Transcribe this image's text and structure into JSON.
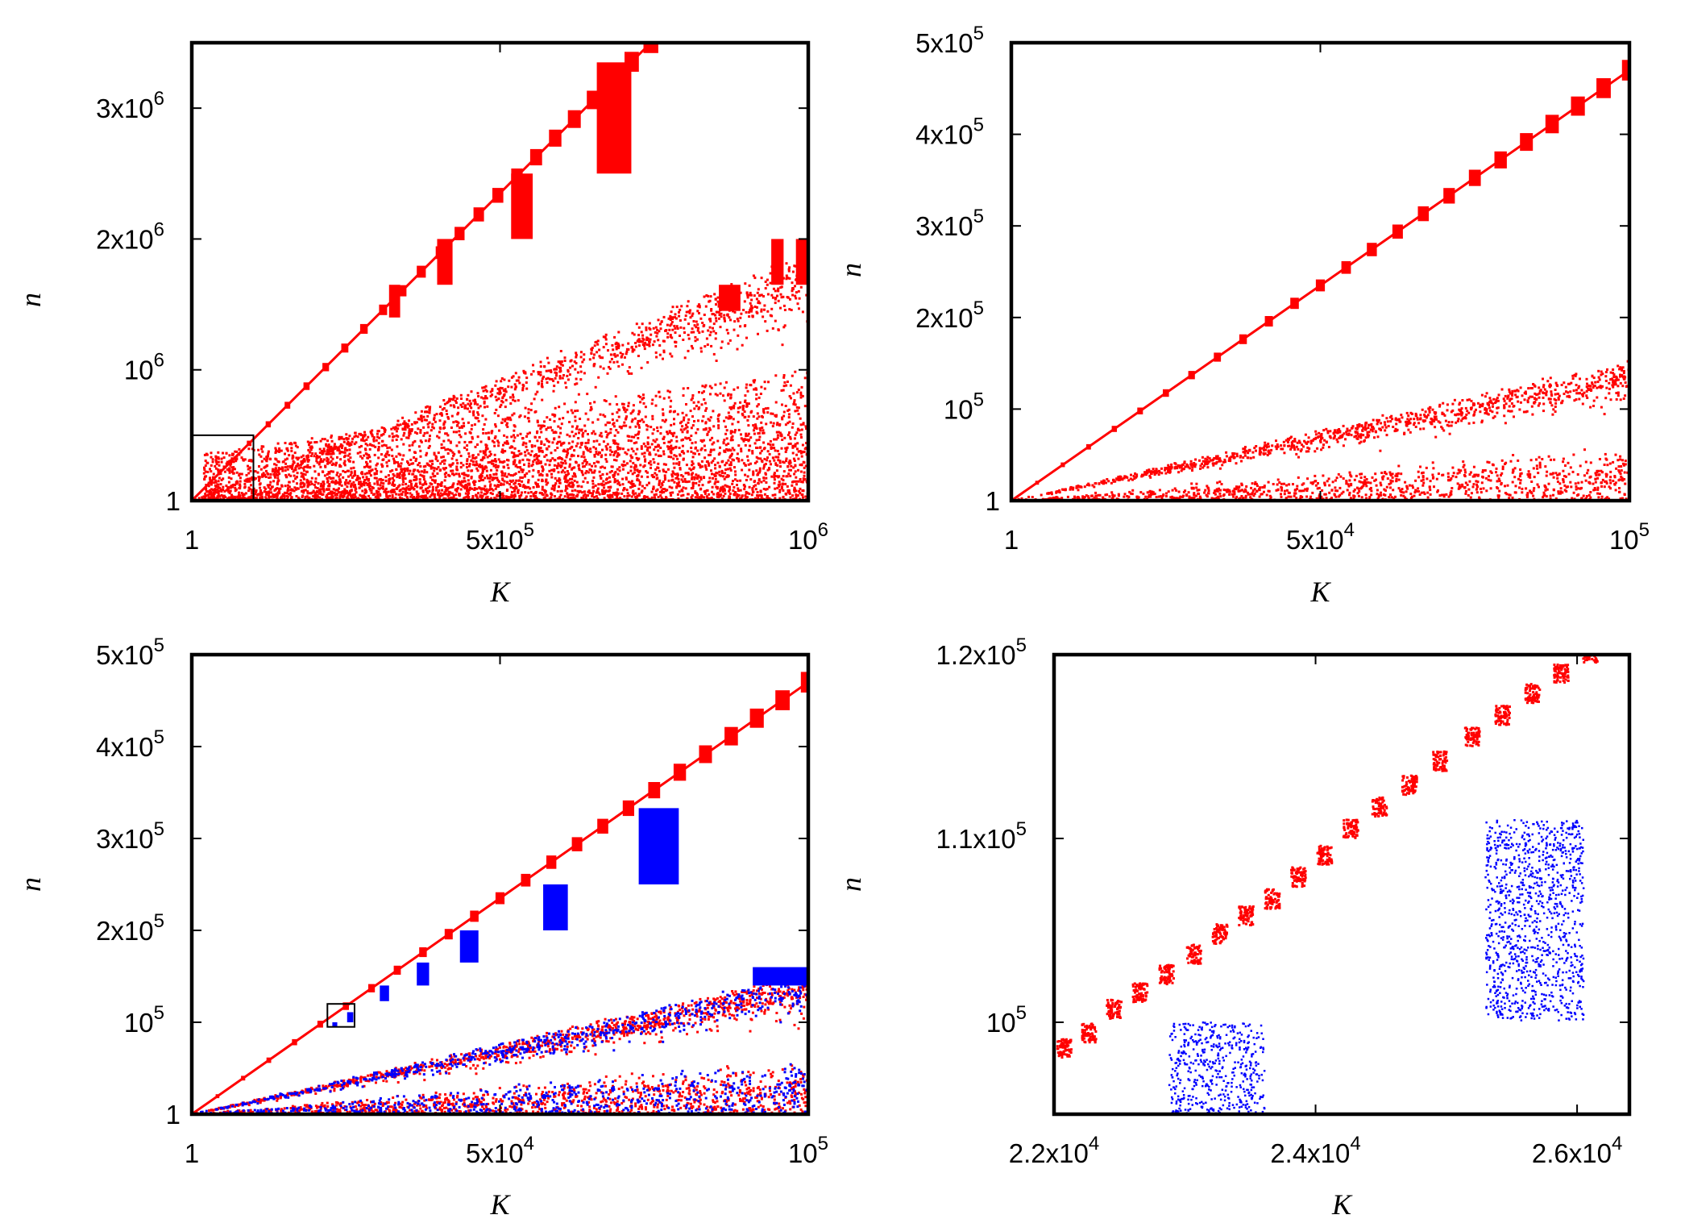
{
  "chart_data": [
    {
      "type": "scatter",
      "panel": "top-left",
      "xlabel": "K",
      "ylabel": "n",
      "xlim": [
        1,
        1000000
      ],
      "ylim": [
        1,
        3500000
      ],
      "xticks": [
        1,
        500000,
        1000000
      ],
      "xtick_labels": [
        {
          "m": "1",
          "e": ""
        },
        {
          "m": "5x10",
          "e": "5"
        },
        {
          "m": "10",
          "e": "6"
        }
      ],
      "yticks": [
        1,
        1000000,
        2000000,
        3000000
      ],
      "ytick_labels": [
        {
          "m": "1",
          "e": ""
        },
        {
          "m": "10",
          "e": "6"
        },
        {
          "m": "2x10",
          "e": "6"
        },
        {
          "m": "3x10",
          "e": "6"
        }
      ],
      "zoom_box": {
        "x": [
          1,
          100000
        ],
        "y": [
          1,
          500000
        ]
      },
      "series": [
        {
          "name": "red",
          "color": "#ff0000",
          "line_slope": 4.7,
          "blocks": [
            {
              "x": [
                320000,
                338000
              ],
              "y": [
                1400000,
                1650000
              ]
            },
            {
              "x": [
                398000,
                423000
              ],
              "y": [
                1650000,
                2000000
              ]
            },
            {
              "x": [
                518000,
                553000
              ],
              "y": [
                2000000,
                2500000
              ]
            },
            {
              "x": [
                657000,
                713000
              ],
              "y": [
                2500000,
                3350000
              ]
            },
            {
              "x": [
                855000,
                890000
              ],
              "y": [
                1450000,
                1650000
              ]
            },
            {
              "x": [
                940000,
                960000
              ],
              "y": [
                1650000,
                2000000
              ]
            },
            {
              "x": [
                980000,
                1000000
              ],
              "y": [
                1650000,
                2000000
              ]
            }
          ],
          "bands": [
            {
              "slope": 1.85,
              "spread": 0.12
            },
            {
              "slope": 0.85,
              "spread": 0.2
            }
          ],
          "cluster_region": {
            "x": [
              20000,
              1000000
            ],
            "y": [
              1,
              1000000
            ]
          }
        }
      ]
    },
    {
      "type": "scatter",
      "panel": "top-right",
      "xlabel": "K",
      "ylabel": "n",
      "xlim": [
        1,
        100000
      ],
      "ylim": [
        1,
        500000
      ],
      "xticks": [
        1,
        50000,
        100000
      ],
      "xtick_labels": [
        {
          "m": "1",
          "e": ""
        },
        {
          "m": "5x10",
          "e": "4"
        },
        {
          "m": "10",
          "e": "5"
        }
      ],
      "yticks": [
        1,
        100000,
        200000,
        300000,
        400000,
        500000
      ],
      "ytick_labels": [
        {
          "m": "1",
          "e": ""
        },
        {
          "m": "10",
          "e": "5"
        },
        {
          "m": "2x10",
          "e": "5"
        },
        {
          "m": "3x10",
          "e": "5"
        },
        {
          "m": "4x10",
          "e": "5"
        },
        {
          "m": "5x10",
          "e": "5"
        }
      ],
      "series": [
        {
          "name": "red",
          "color": "#ff0000",
          "line_slope": 4.7,
          "bands": [
            {
              "slope": 1.5,
              "spread": 0.12
            },
            {
              "slope": 0.6,
              "spread": 0.35
            }
          ]
        }
      ]
    },
    {
      "type": "scatter",
      "panel": "bottom-left",
      "xlabel": "K",
      "ylabel": "n",
      "xlim": [
        1,
        100000
      ],
      "ylim": [
        1,
        500000
      ],
      "xticks": [
        1,
        50000,
        100000
      ],
      "xtick_labels": [
        {
          "m": "1",
          "e": ""
        },
        {
          "m": "5x10",
          "e": "4"
        },
        {
          "m": "10",
          "e": "5"
        }
      ],
      "yticks": [
        1,
        100000,
        200000,
        300000,
        400000,
        500000
      ],
      "ytick_labels": [
        {
          "m": "1",
          "e": ""
        },
        {
          "m": "10",
          "e": "5"
        },
        {
          "m": "2x10",
          "e": "5"
        },
        {
          "m": "3x10",
          "e": "5"
        },
        {
          "m": "4x10",
          "e": "5"
        },
        {
          "m": "5x10",
          "e": "5"
        }
      ],
      "zoom_box": {
        "x": [
          22000,
          26400
        ],
        "y": [
          95000,
          120000
        ]
      },
      "series": [
        {
          "name": "red",
          "color": "#ff0000",
          "line_slope": 4.7,
          "bands": [
            {
              "slope": 1.5,
              "spread": 0.12
            },
            {
              "slope": 0.6,
              "spread": 0.35
            }
          ]
        },
        {
          "name": "blue",
          "color": "#0000ff",
          "blocks": [
            {
              "x": [
                22800,
                23600
              ],
              "y": [
                95000,
                100000
              ]
            },
            {
              "x": [
                25200,
                26200
              ],
              "y": [
                100000,
                111000
              ]
            },
            {
              "x": [
                30500,
                32000
              ],
              "y": [
                123000,
                140000
              ]
            },
            {
              "x": [
                36500,
                38500
              ],
              "y": [
                140000,
                165000
              ]
            },
            {
              "x": [
                43500,
                46500
              ],
              "y": [
                165000,
                200000
              ]
            },
            {
              "x": [
                57000,
                61000
              ],
              "y": [
                200000,
                250000
              ]
            },
            {
              "x": [
                72500,
                79000
              ],
              "y": [
                250000,
                333000
              ]
            },
            {
              "x": [
                91000,
                100000
              ],
              "y": [
                140000,
                160000
              ]
            }
          ],
          "bands": [
            {
              "slope": 1.5,
              "spread": 0.12
            },
            {
              "slope": 0.6,
              "spread": 0.35
            }
          ]
        }
      ]
    },
    {
      "type": "scatter",
      "panel": "bottom-right",
      "xlabel": "K",
      "ylabel": "n",
      "xlim": [
        22000,
        26400
      ],
      "ylim": [
        95000,
        120000
      ],
      "xticks": [
        22000,
        24000,
        26000
      ],
      "xtick_labels": [
        {
          "m": "2.2x10",
          "e": "4"
        },
        {
          "m": "2.4x10",
          "e": "4"
        },
        {
          "m": "2.6x10",
          "e": "4"
        }
      ],
      "yticks": [
        100000,
        110000,
        120000
      ],
      "ytick_labels": [
        {
          "m": "10",
          "e": "5"
        },
        {
          "m": "1.1x10",
          "e": "5"
        },
        {
          "m": "1.2x10",
          "e": "5"
        }
      ],
      "series": [
        {
          "name": "red",
          "color": "#ff0000",
          "cluster_centers": [
            {
              "x": 22080,
              "y": 98600
            },
            {
              "x": 22270,
              "y": 99400
            },
            {
              "x": 22460,
              "y": 100700
            },
            {
              "x": 22660,
              "y": 101600
            },
            {
              "x": 22860,
              "y": 102600
            },
            {
              "x": 23070,
              "y": 103700
            },
            {
              "x": 23270,
              "y": 104800
            },
            {
              "x": 23470,
              "y": 105800
            },
            {
              "x": 23670,
              "y": 106700
            },
            {
              "x": 23870,
              "y": 107900
            },
            {
              "x": 24070,
              "y": 109100
            },
            {
              "x": 24270,
              "y": 110500
            },
            {
              "x": 24490,
              "y": 111700
            },
            {
              "x": 24720,
              "y": 112900
            },
            {
              "x": 24950,
              "y": 114200
            },
            {
              "x": 25200,
              "y": 115500
            },
            {
              "x": 25430,
              "y": 116700
            },
            {
              "x": 25660,
              "y": 117900
            },
            {
              "x": 25880,
              "y": 119000
            },
            {
              "x": 26100,
              "y": 120100
            }
          ]
        },
        {
          "name": "blue",
          "color": "#0000ff",
          "blocks": [
            {
              "x": [
                22880,
                23610
              ],
              "y": [
                95000,
                100000
              ]
            },
            {
              "x": [
                25300,
                26050
              ],
              "y": [
                100100,
                111000
              ]
            }
          ]
        }
      ]
    }
  ]
}
